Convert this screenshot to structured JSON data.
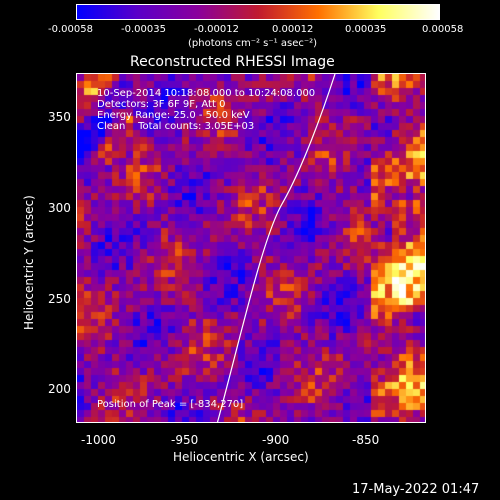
{
  "colorbar": {
    "ticks": [
      "-0.00058",
      "-0.00035",
      "-0.00012",
      "0.00012",
      "0.00035",
      "0.00058"
    ],
    "units_label": "(photons cm⁻² s⁻¹ asec⁻²)",
    "colors": [
      "#0000ff",
      "#5a00c8",
      "#8a009c",
      "#c01a30",
      "#ff7000",
      "#ffff60",
      "#ffffff"
    ]
  },
  "title": "Reconstructed RHESSI Image",
  "info": {
    "line1": "10-Sep-2014 10:18:08.000 to 10:24:08.000",
    "line2": "Detectors: 3F 6F 9F, Att 0",
    "line3": "Energy Range: 25.0 - 50.0 keV",
    "line4": "Clean    Total counts: 3.05E+03",
    "peak": "Position of Peak = [-834,270]"
  },
  "axes": {
    "xlabel": "Heliocentric X (arcsec)",
    "ylabel": "Heliocentric Y (arcsec)",
    "xticks": [
      "-1000",
      "-950",
      "-900",
      "-850"
    ],
    "yticks": [
      "350",
      "300",
      "250",
      "200"
    ],
    "xrange": [
      -1012,
      -823
    ],
    "yrange": [
      182,
      372
    ]
  },
  "timestamp": "17-May-2022 01:47"
}
